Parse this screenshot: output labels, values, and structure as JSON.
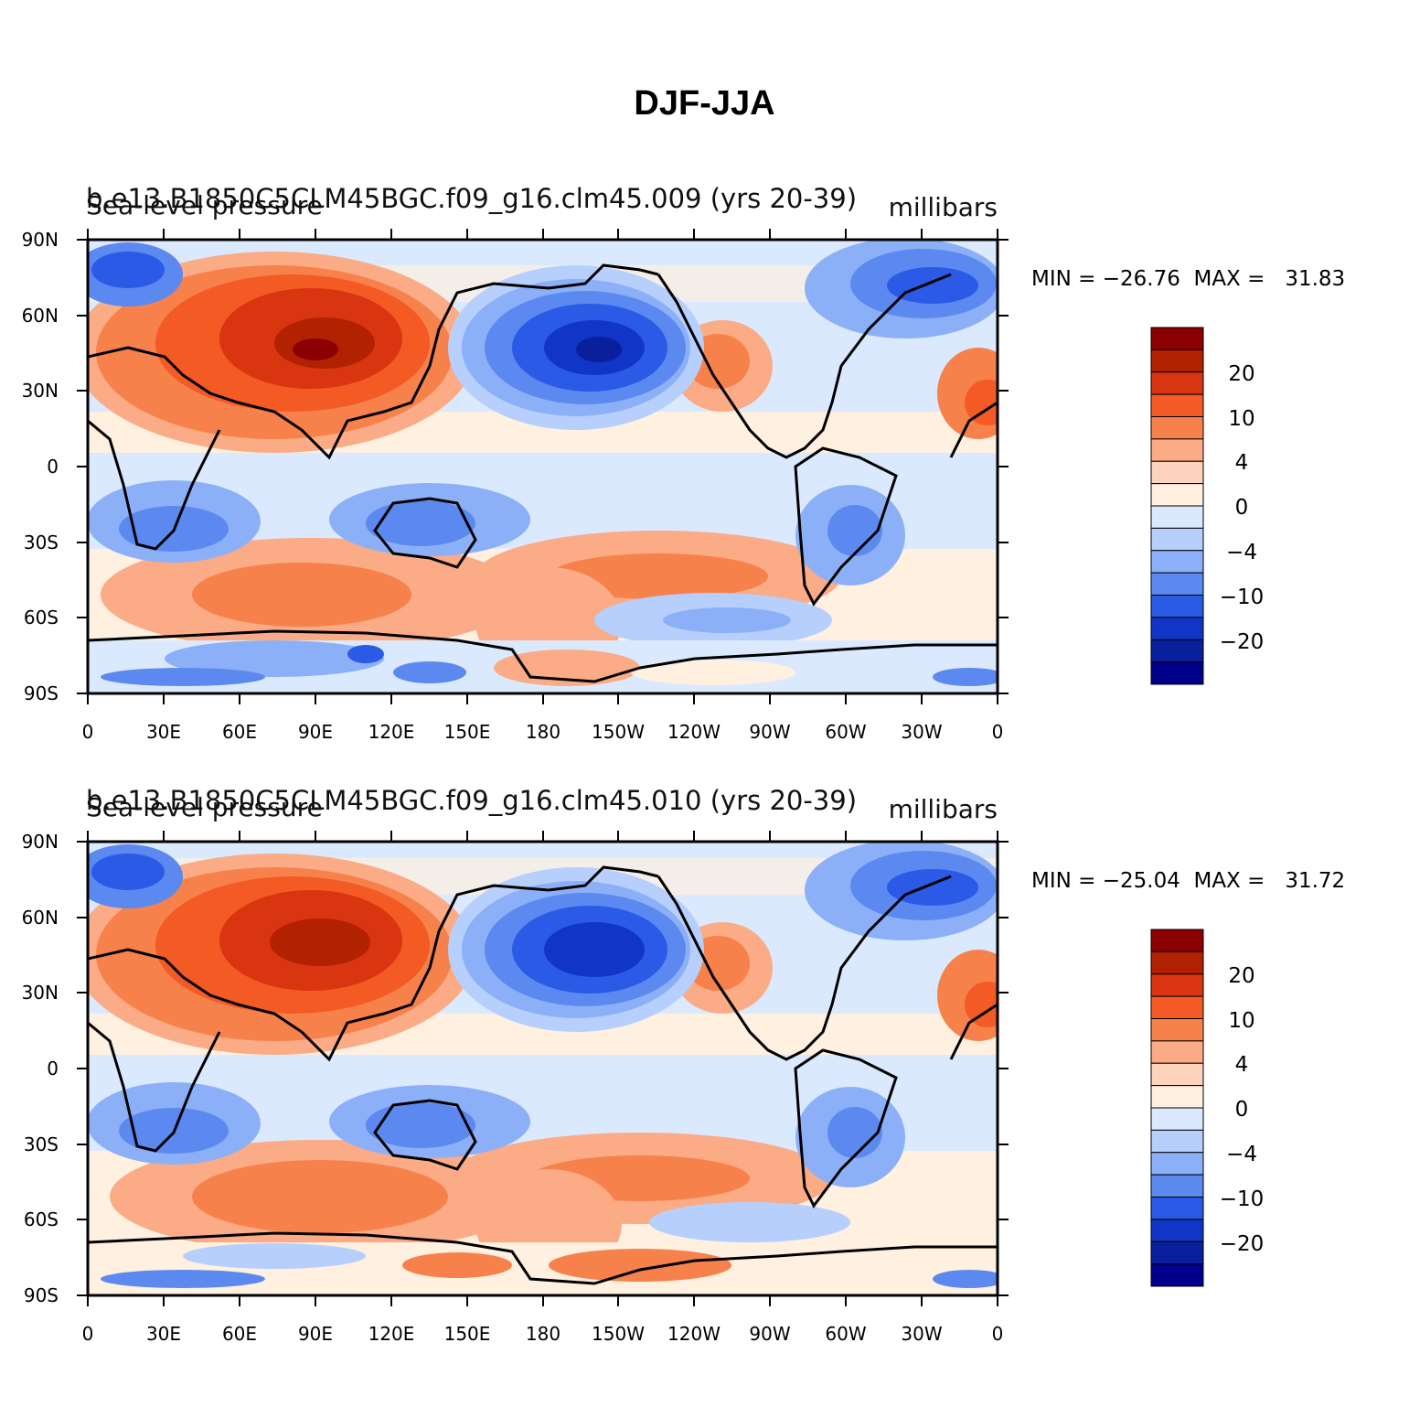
{
  "figure_title": "DJF-JJA",
  "panels": [
    {
      "case_label": "b.e13.B1850C5CLM45BGC.f09_g16.clm45.009 (yrs 20-39)",
      "variable_label": "Sea-level pressure",
      "units": "millibars",
      "min_label": "MIN = −26.76",
      "max_label": "MAX =   31.83"
    },
    {
      "case_label": "b.e13.B1850C5CLM45BGC.f09_g16.clm45.010 (yrs 20-39)",
      "variable_label": "Sea-level pressure",
      "units": "millibars",
      "min_label": "MIN = −25.04",
      "max_label": "MAX =   31.72"
    }
  ],
  "lat_ticks": [
    "90N",
    "60N",
    "30N",
    "0",
    "30S",
    "60S",
    "90S"
  ],
  "lon_ticks": [
    "0",
    "30E",
    "60E",
    "90E",
    "120E",
    "150E",
    "180",
    "150W",
    "120W",
    "90W",
    "60W",
    "30W",
    "0"
  ],
  "colorbar_labels": [
    "20",
    "10",
    "4",
    "0",
    "−4",
    "−10",
    "−20"
  ],
  "colorbar_colors": [
    "#8b0000",
    "#b22200",
    "#d93510",
    "#f45a23",
    "#f7814b",
    "#fbab85",
    "#fdd3bd",
    "#fff0e0",
    "#dbe9ff",
    "#b6cffc",
    "#8cb0f7",
    "#5b89f0",
    "#2a5ae6",
    "#1035c7",
    "#0a1f9c",
    "#00008b"
  ]
}
